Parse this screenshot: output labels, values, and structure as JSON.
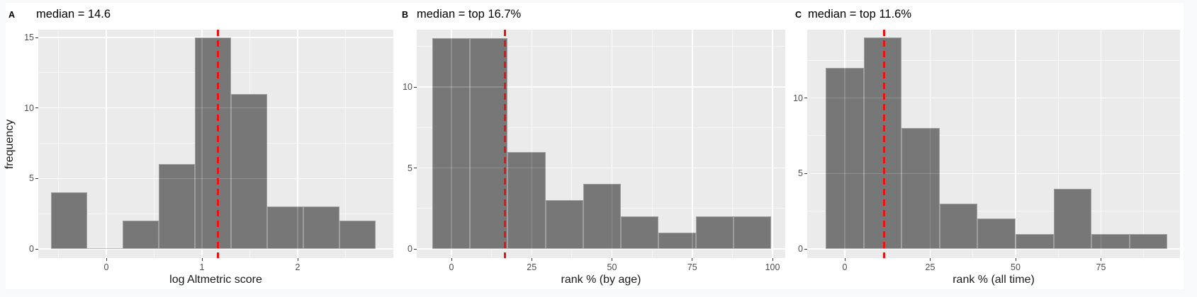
{
  "figure": {
    "description": "Three-panel histogram figure of Altmetric attention metrics",
    "panel_count": 3
  },
  "colors": {
    "frame_background": "#f7f9fa",
    "canvas_background": "#ffffff",
    "panel_background": "#ebebeb",
    "bar_fill": "#777777",
    "bar_border": "#9e9e9e",
    "gridline": "#ffffff",
    "median_line": "#ee1111",
    "tick_text": "#4d4d4d",
    "title_text": "#000000"
  },
  "chart_data": [
    {
      "type": "bar",
      "subtype": "histogram",
      "panel_label": "A",
      "title": "median = 14.6",
      "xlabel": "log Altmetric score",
      "ylabel": "frequency",
      "x_ticks": [
        0,
        1,
        2
      ],
      "y_ticks": [
        0,
        5,
        10,
        15
      ],
      "bin_start": -0.58,
      "bin_width": 0.377,
      "counts": [
        4,
        0,
        2,
        6,
        15,
        11,
        3,
        3,
        2
      ],
      "median_x": 1.164,
      "median_value": 14.6,
      "xlim": [
        -0.71,
        3.0
      ],
      "ylim": [
        0,
        15.8
      ],
      "grid": true,
      "legend": false
    },
    {
      "type": "bar",
      "subtype": "histogram",
      "panel_label": "B",
      "title": "median = top 16.7%",
      "xlabel": "rank % (by age)",
      "ylabel": "",
      "x_ticks": [
        0,
        25,
        50,
        75,
        100
      ],
      "y_ticks": [
        0,
        5,
        10
      ],
      "bin_start": -5.9,
      "bin_width": 11.72,
      "counts": [
        13,
        13,
        6,
        3,
        4,
        2,
        1,
        2,
        2
      ],
      "median_x": 16.7,
      "median_value": 16.7,
      "xlim": [
        -10.8,
        104.0
      ],
      "ylim": [
        0,
        13.65
      ],
      "grid": true,
      "legend": false
    },
    {
      "type": "bar",
      "subtype": "histogram",
      "panel_label": "C",
      "title": "median = top 11.6%",
      "xlabel": "rank % (all time)",
      "ylabel": "",
      "x_ticks": [
        0,
        25,
        50,
        75
      ],
      "y_ticks": [
        0,
        5,
        10
      ],
      "bin_start": -5.5,
      "bin_width": 11.1,
      "counts": [
        12,
        14,
        8,
        3,
        2,
        1,
        4,
        1,
        1
      ],
      "median_x": 11.6,
      "median_value": 11.6,
      "xlim": [
        -11.0,
        99.4
      ],
      "ylim": [
        0,
        14.7
      ],
      "grid": true,
      "legend": false
    }
  ]
}
